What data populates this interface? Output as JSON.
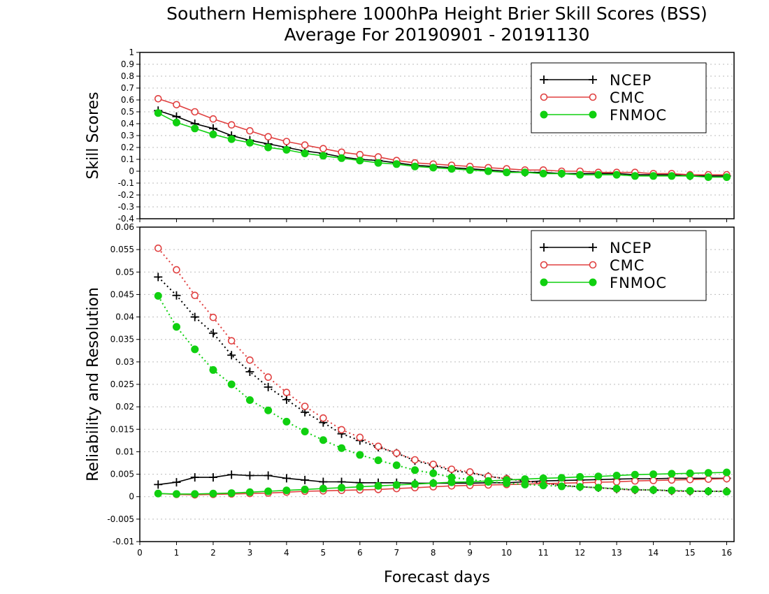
{
  "title_line1": "Southern Hemisphere 1000hPa Height Brier Skill Scores (BSS)",
  "title_line2": "Average For 20190901 - 20191130",
  "xlabel": "Forecast days",
  "colors": {
    "NCEP": "#000000",
    "CMC": "#e04040",
    "FNMOC": "#10d010"
  },
  "chart_data": [
    {
      "type": "line",
      "ylabel": "Skill Scores",
      "xlim": [
        0,
        16.2
      ],
      "ylim": [
        -0.4,
        1
      ],
      "grid": true,
      "legend_position": "top-right",
      "x_ticks": [
        "0",
        "1",
        "2",
        "3",
        "4",
        "5",
        "6",
        "7",
        "8",
        "9",
        "10",
        "11",
        "12",
        "13",
        "14",
        "15",
        "16"
      ],
      "y_ticks": [
        "1",
        "0.9",
        "0.8",
        "0.7",
        "0.6",
        "0.5",
        "0.4",
        "0.3",
        "0.2",
        "0.1",
        "0",
        "-0.1",
        "-0.2",
        "-0.3",
        "-0.4"
      ],
      "x": [
        0.5,
        1,
        1.5,
        2,
        2.5,
        3,
        3.5,
        4,
        4.5,
        5,
        5.5,
        6,
        6.5,
        7,
        7.5,
        8,
        8.5,
        9,
        9.5,
        10,
        10.5,
        11,
        11.5,
        12,
        12.5,
        13,
        13.5,
        14,
        14.5,
        15,
        15.5,
        16
      ],
      "series": [
        {
          "name": "NCEP",
          "marker": "plus",
          "values": [
            0.51,
            0.46,
            0.4,
            0.36,
            0.3,
            0.26,
            0.23,
            0.2,
            0.17,
            0.15,
            0.12,
            0.1,
            0.09,
            0.07,
            0.05,
            0.04,
            0.03,
            0.02,
            0.01,
            0.0,
            -0.01,
            -0.01,
            -0.02,
            -0.02,
            -0.02,
            -0.02,
            -0.03,
            -0.03,
            -0.03,
            -0.04,
            -0.04,
            -0.04
          ]
        },
        {
          "name": "CMC",
          "marker": "open-circle",
          "values": [
            0.61,
            0.56,
            0.5,
            0.44,
            0.39,
            0.34,
            0.29,
            0.25,
            0.22,
            0.19,
            0.16,
            0.14,
            0.12,
            0.09,
            0.07,
            0.06,
            0.05,
            0.04,
            0.03,
            0.02,
            0.01,
            0.01,
            0.0,
            0.0,
            -0.01,
            -0.01,
            -0.01,
            -0.02,
            -0.02,
            -0.03,
            -0.03,
            -0.03
          ]
        },
        {
          "name": "FNMOC",
          "marker": "filled-circle",
          "values": [
            0.49,
            0.41,
            0.36,
            0.31,
            0.27,
            0.24,
            0.2,
            0.18,
            0.15,
            0.13,
            0.11,
            0.09,
            0.07,
            0.06,
            0.04,
            0.03,
            0.02,
            0.01,
            0.0,
            -0.01,
            -0.01,
            -0.02,
            -0.02,
            -0.03,
            -0.03,
            -0.03,
            -0.04,
            -0.04,
            -0.04,
            -0.04,
            -0.05,
            -0.05
          ]
        }
      ]
    },
    {
      "type": "line",
      "ylabel": "Reliability and Resolution",
      "xlim": [
        0,
        16.2
      ],
      "ylim": [
        -0.01,
        0.06
      ],
      "grid": true,
      "legend_position": "top-right",
      "x_ticks": [
        "0",
        "1",
        "2",
        "3",
        "4",
        "5",
        "6",
        "7",
        "8",
        "9",
        "10",
        "11",
        "12",
        "13",
        "14",
        "15",
        "16"
      ],
      "y_ticks": [
        "0.06",
        "0.055",
        "0.05",
        "0.045",
        "0.04",
        "0.035",
        "0.03",
        "0.025",
        "0.02",
        "0.015",
        "0.01",
        "0.005",
        "0",
        "-0.005",
        "-0.01"
      ],
      "x": [
        0.5,
        1,
        1.5,
        2,
        2.5,
        3,
        3.5,
        4,
        4.5,
        5,
        5.5,
        6,
        6.5,
        7,
        7.5,
        8,
        8.5,
        9,
        9.5,
        10,
        10.5,
        11,
        11.5,
        12,
        12.5,
        13,
        13.5,
        14,
        14.5,
        15,
        15.5,
        16
      ],
      "series": [
        {
          "name": "NCEP",
          "marker": "plus",
          "role": "resolution",
          "line": "dotted",
          "values": [
            0.0489,
            0.0448,
            0.04,
            0.0364,
            0.0315,
            0.0278,
            0.0244,
            0.0216,
            0.0188,
            0.0165,
            0.014,
            0.0125,
            0.011,
            0.0097,
            0.008,
            0.007,
            0.0058,
            0.0053,
            0.0045,
            0.004,
            0.0035,
            0.003,
            0.0025,
            0.0022,
            0.002,
            0.0017,
            0.0015,
            0.0015,
            0.0013,
            0.0012,
            0.0012,
            0.0012
          ]
        },
        {
          "name": "NCEP",
          "marker": "plus",
          "role": "reliability",
          "line": "solid",
          "values": [
            0.0027,
            0.0032,
            0.0043,
            0.0043,
            0.0049,
            0.0047,
            0.0047,
            0.0041,
            0.0037,
            0.0033,
            0.0033,
            0.0031,
            0.0031,
            0.0031,
            0.003,
            0.003,
            0.003,
            0.003,
            0.0031,
            0.0031,
            0.0033,
            0.0035,
            0.0036,
            0.0037,
            0.0038,
            0.0039,
            0.004,
            0.004,
            0.0041,
            0.0041,
            0.0041,
            0.0041
          ]
        },
        {
          "name": "CMC",
          "marker": "open-circle",
          "role": "resolution",
          "line": "dotted",
          "values": [
            0.0553,
            0.0505,
            0.0448,
            0.0399,
            0.0347,
            0.0304,
            0.0266,
            0.0232,
            0.0201,
            0.0175,
            0.0149,
            0.0132,
            0.0112,
            0.0097,
            0.0082,
            0.0072,
            0.0061,
            0.0055,
            0.0045,
            0.004,
            0.0035,
            0.003,
            0.0025,
            0.0022,
            0.002,
            0.0017,
            0.0015,
            0.0015,
            0.0013,
            0.0012,
            0.0012,
            0.0012
          ]
        },
        {
          "name": "CMC",
          "marker": "open-circle",
          "role": "reliability",
          "line": "solid",
          "values": [
            0.0007,
            0.0005,
            0.0004,
            0.0005,
            0.0006,
            0.0007,
            0.0008,
            0.001,
            0.0012,
            0.0013,
            0.0014,
            0.0015,
            0.0016,
            0.0018,
            0.002,
            0.0022,
            0.0024,
            0.0025,
            0.0026,
            0.0027,
            0.0028,
            0.0029,
            0.003,
            0.0031,
            0.0032,
            0.0033,
            0.0035,
            0.0036,
            0.0037,
            0.0038,
            0.0039,
            0.004
          ]
        },
        {
          "name": "FNMOC",
          "marker": "filled-circle",
          "role": "resolution",
          "line": "dotted",
          "values": [
            0.0447,
            0.0378,
            0.0328,
            0.0282,
            0.025,
            0.0215,
            0.0192,
            0.0167,
            0.0145,
            0.0126,
            0.0108,
            0.0093,
            0.0081,
            0.007,
            0.0059,
            0.0052,
            0.0043,
            0.0038,
            0.0033,
            0.003,
            0.0027,
            0.0025,
            0.0023,
            0.0022,
            0.002,
            0.0018,
            0.0016,
            0.0015,
            0.0014,
            0.0013,
            0.0012,
            0.0011
          ]
        },
        {
          "name": "FNMOC",
          "marker": "filled-circle",
          "role": "reliability",
          "line": "solid",
          "values": [
            0.0007,
            0.0006,
            0.0006,
            0.0007,
            0.0008,
            0.001,
            0.0012,
            0.0014,
            0.0016,
            0.0018,
            0.002,
            0.0022,
            0.0024,
            0.0026,
            0.0028,
            0.003,
            0.0032,
            0.0033,
            0.0035,
            0.0037,
            0.0039,
            0.0041,
            0.0042,
            0.0044,
            0.0045,
            0.0047,
            0.0049,
            0.005,
            0.0051,
            0.0052,
            0.0053,
            0.0054
          ]
        }
      ]
    }
  ]
}
